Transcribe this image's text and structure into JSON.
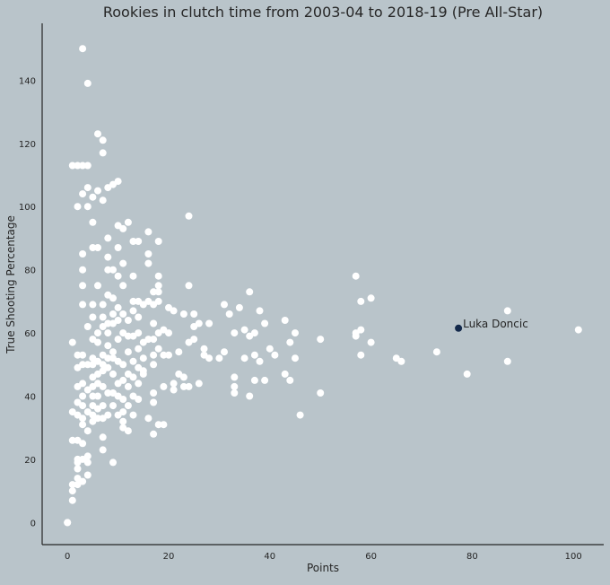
{
  "chart_data": {
    "type": "scatter",
    "title": "Rookies in clutch time from 2003-04 to 2018-19 (Pre All-Star)",
    "xlabel": "Points",
    "ylabel": "True Shooting Percentage",
    "xlim": [
      -5,
      106
    ],
    "ylim": [
      -7,
      158
    ],
    "xticks": [
      0,
      20,
      40,
      60,
      80,
      100
    ],
    "yticks": [
      0,
      20,
      40,
      60,
      80,
      100,
      120,
      140
    ],
    "grid": false,
    "colors": {
      "background": "#b9c4ca",
      "points": "#ffffff",
      "highlight": "#13294b",
      "axis": "#262626"
    },
    "series": [
      {
        "values": [
          [
            0,
            0
          ],
          [
            0,
            0
          ],
          [
            1,
            57
          ],
          [
            1,
            35
          ],
          [
            1,
            26
          ],
          [
            1,
            12
          ],
          [
            1,
            10
          ],
          [
            1,
            7
          ],
          [
            1,
            113
          ],
          [
            2,
            113
          ],
          [
            2,
            100
          ],
          [
            2,
            53
          ],
          [
            2,
            49
          ],
          [
            2,
            43
          ],
          [
            2,
            38
          ],
          [
            2,
            34
          ],
          [
            2,
            26
          ],
          [
            2,
            20
          ],
          [
            2,
            19
          ],
          [
            2,
            17
          ],
          [
            2,
            14
          ],
          [
            2,
            12
          ],
          [
            3,
            150
          ],
          [
            3,
            113
          ],
          [
            3,
            104
          ],
          [
            3,
            85
          ],
          [
            3,
            80
          ],
          [
            3,
            75
          ],
          [
            3,
            69
          ],
          [
            3,
            53
          ],
          [
            3,
            50
          ],
          [
            3,
            44
          ],
          [
            3,
            40
          ],
          [
            3,
            37
          ],
          [
            3,
            33
          ],
          [
            3,
            31
          ],
          [
            3,
            25
          ],
          [
            3,
            20
          ],
          [
            3,
            13
          ],
          [
            4,
            139
          ],
          [
            4,
            113
          ],
          [
            4,
            106
          ],
          [
            4,
            100
          ],
          [
            4,
            62
          ],
          [
            4,
            50
          ],
          [
            4,
            42
          ],
          [
            4,
            35
          ],
          [
            4,
            29
          ],
          [
            4,
            21
          ],
          [
            4,
            19
          ],
          [
            4,
            15
          ],
          [
            5,
            103
          ],
          [
            5,
            95
          ],
          [
            5,
            87
          ],
          [
            5,
            69
          ],
          [
            5,
            65
          ],
          [
            5,
            58
          ],
          [
            5,
            52
          ],
          [
            5,
            50
          ],
          [
            5,
            46
          ],
          [
            5,
            43
          ],
          [
            5,
            40
          ],
          [
            5,
            37
          ],
          [
            5,
            34
          ],
          [
            5,
            32
          ],
          [
            6,
            123
          ],
          [
            6,
            105
          ],
          [
            6,
            87
          ],
          [
            6,
            75
          ],
          [
            6,
            60
          ],
          [
            6,
            57
          ],
          [
            6,
            51
          ],
          [
            6,
            47
          ],
          [
            6,
            44
          ],
          [
            6,
            40
          ],
          [
            6,
            36
          ],
          [
            6,
            33
          ],
          [
            7,
            121
          ],
          [
            7,
            117
          ],
          [
            7,
            102
          ],
          [
            7,
            69
          ],
          [
            7,
            65
          ],
          [
            7,
            62
          ],
          [
            7,
            53
          ],
          [
            7,
            50
          ],
          [
            7,
            48
          ],
          [
            7,
            43
          ],
          [
            7,
            37
          ],
          [
            7,
            33
          ],
          [
            7,
            27
          ],
          [
            7,
            23
          ],
          [
            8,
            106
          ],
          [
            8,
            90
          ],
          [
            8,
            84
          ],
          [
            8,
            80
          ],
          [
            8,
            72
          ],
          [
            8,
            63
          ],
          [
            8,
            60
          ],
          [
            8,
            56
          ],
          [
            8,
            52
          ],
          [
            8,
            49
          ],
          [
            8,
            41
          ],
          [
            8,
            34
          ],
          [
            9,
            107
          ],
          [
            9,
            80
          ],
          [
            9,
            71
          ],
          [
            9,
            66
          ],
          [
            9,
            63
          ],
          [
            9,
            54
          ],
          [
            9,
            52
          ],
          [
            9,
            47
          ],
          [
            9,
            41
          ],
          [
            9,
            37
          ],
          [
            9,
            19
          ],
          [
            10,
            108
          ],
          [
            10,
            94
          ],
          [
            10,
            87
          ],
          [
            10,
            78
          ],
          [
            10,
            68
          ],
          [
            10,
            64
          ],
          [
            10,
            58
          ],
          [
            10,
            51
          ],
          [
            10,
            44
          ],
          [
            10,
            40
          ],
          [
            10,
            34
          ],
          [
            11,
            93
          ],
          [
            11,
            82
          ],
          [
            11,
            75
          ],
          [
            11,
            66
          ],
          [
            11,
            60
          ],
          [
            11,
            50
          ],
          [
            11,
            45
          ],
          [
            11,
            39
          ],
          [
            11,
            35
          ],
          [
            11,
            32
          ],
          [
            11,
            30
          ],
          [
            12,
            95
          ],
          [
            12,
            64
          ],
          [
            12,
            59
          ],
          [
            12,
            54
          ],
          [
            12,
            47
          ],
          [
            12,
            43
          ],
          [
            12,
            37
          ],
          [
            12,
            29
          ],
          [
            13,
            89
          ],
          [
            13,
            78
          ],
          [
            13,
            70
          ],
          [
            13,
            67
          ],
          [
            13,
            59
          ],
          [
            13,
            51
          ],
          [
            13,
            46
          ],
          [
            13,
            40
          ],
          [
            13,
            34
          ],
          [
            14,
            89
          ],
          [
            14,
            70
          ],
          [
            14,
            65
          ],
          [
            14,
            60
          ],
          [
            14,
            55
          ],
          [
            14,
            49
          ],
          [
            14,
            44
          ],
          [
            14,
            39
          ],
          [
            15,
            69
          ],
          [
            15,
            57
          ],
          [
            15,
            52
          ],
          [
            15,
            48
          ],
          [
            15,
            47
          ],
          [
            16,
            92
          ],
          [
            16,
            85
          ],
          [
            16,
            82
          ],
          [
            16,
            70
          ],
          [
            16,
            58
          ],
          [
            16,
            33
          ],
          [
            17,
            73
          ],
          [
            17,
            69
          ],
          [
            17,
            63
          ],
          [
            17,
            58
          ],
          [
            17,
            53
          ],
          [
            17,
            50
          ],
          [
            17,
            41
          ],
          [
            17,
            38
          ],
          [
            17,
            28
          ],
          [
            18,
            89
          ],
          [
            18,
            78
          ],
          [
            18,
            75
          ],
          [
            18,
            73
          ],
          [
            18,
            70
          ],
          [
            18,
            60
          ],
          [
            18,
            55
          ],
          [
            18,
            31
          ],
          [
            19,
            61
          ],
          [
            19,
            53
          ],
          [
            19,
            43
          ],
          [
            19,
            31
          ],
          [
            20,
            68
          ],
          [
            20,
            60
          ],
          [
            20,
            53
          ],
          [
            21,
            67
          ],
          [
            21,
            44
          ],
          [
            21,
            42
          ],
          [
            22,
            54
          ],
          [
            22,
            47
          ],
          [
            23,
            66
          ],
          [
            23,
            46
          ],
          [
            23,
            43
          ],
          [
            24,
            97
          ],
          [
            24,
            75
          ],
          [
            24,
            57
          ],
          [
            24,
            43
          ],
          [
            25,
            66
          ],
          [
            25,
            62
          ],
          [
            25,
            58
          ],
          [
            26,
            63
          ],
          [
            26,
            44
          ],
          [
            27,
            55
          ],
          [
            27,
            53
          ],
          [
            28,
            63
          ],
          [
            28,
            52
          ],
          [
            30,
            52
          ],
          [
            31,
            69
          ],
          [
            31,
            54
          ],
          [
            32,
            66
          ],
          [
            33,
            60
          ],
          [
            33,
            46
          ],
          [
            33,
            43
          ],
          [
            33,
            41
          ],
          [
            34,
            68
          ],
          [
            35,
            61
          ],
          [
            35,
            52
          ],
          [
            36,
            73
          ],
          [
            36,
            59
          ],
          [
            36,
            40
          ],
          [
            37,
            60
          ],
          [
            37,
            53
          ],
          [
            37,
            45
          ],
          [
            38,
            67
          ],
          [
            38,
            51
          ],
          [
            39,
            63
          ],
          [
            39,
            45
          ],
          [
            40,
            55
          ],
          [
            41,
            53
          ],
          [
            43,
            64
          ],
          [
            43,
            47
          ],
          [
            44,
            57
          ],
          [
            44,
            45
          ],
          [
            45,
            60
          ],
          [
            45,
            52
          ],
          [
            46,
            34
          ],
          [
            50,
            58
          ],
          [
            50,
            41
          ],
          [
            57,
            78
          ],
          [
            57,
            60
          ],
          [
            57,
            59
          ],
          [
            58,
            70
          ],
          [
            58,
            61
          ],
          [
            58,
            53
          ],
          [
            60,
            71
          ],
          [
            60,
            57
          ],
          [
            65,
            52
          ],
          [
            66,
            51
          ],
          [
            73,
            54
          ],
          [
            79,
            47
          ],
          [
            87,
            67
          ],
          [
            87,
            51
          ],
          [
            101,
            61
          ]
        ]
      }
    ],
    "highlight": {
      "label": "Luka Doncic",
      "x": 77.3,
      "y": 61.5
    }
  }
}
